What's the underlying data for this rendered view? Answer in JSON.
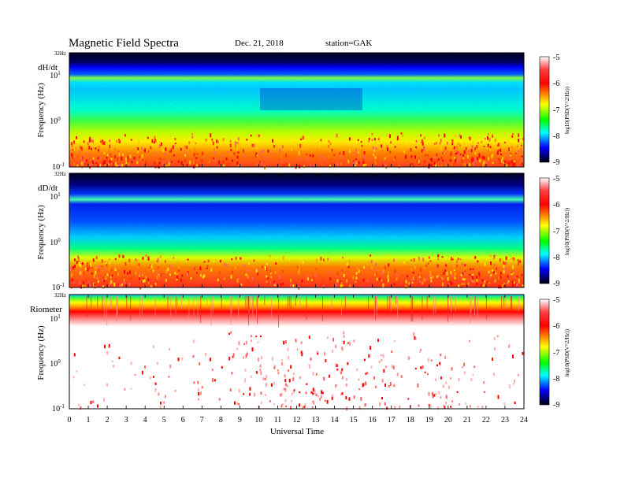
{
  "header": {
    "title": "Magnetic Field Spectra",
    "date": "Dec. 21, 2018",
    "station": "station=GAK"
  },
  "colors": {
    "colormap": [
      "#ffffff",
      "#ff0000",
      "#ffff00",
      "#00ff00",
      "#00ffff",
      "#0000ff",
      "#000000"
    ]
  },
  "chart_data": [
    {
      "type": "heatmap",
      "panel_label": "dH/dt",
      "ylabel": "Frequency (Hz)",
      "xlabel": "",
      "x_range": [
        0,
        24
      ],
      "y_scale": "log",
      "y_ticks": [
        {
          "label": "10",
          "sup": "-1"
        },
        {
          "label": "10",
          "sup": "0"
        },
        {
          "label": "10",
          "sup": "1"
        }
      ],
      "y_top_label": "32Hz",
      "colorbar_label": "log10(PSD(V^2/Hz))",
      "colorbar_ticks": [
        "-5",
        "-6",
        "-7",
        "-8",
        "-9"
      ],
      "colorbar_range": [
        -9,
        -5
      ],
      "description_levels": {
        "low_freq": -6,
        "mid_freq": -7.5,
        "band_7hz": -6.8,
        "high_freq": -9
      }
    },
    {
      "type": "heatmap",
      "panel_label": "dD/dt",
      "ylabel": "Frequency (Hz)",
      "xlabel": "",
      "x_range": [
        0,
        24
      ],
      "y_scale": "log",
      "y_ticks": [
        {
          "label": "10",
          "sup": "-1"
        },
        {
          "label": "10",
          "sup": "0"
        },
        {
          "label": "10",
          "sup": "1"
        }
      ],
      "y_top_label": "32Hz",
      "colorbar_label": "log10(PSD(V^2/Hz))",
      "colorbar_ticks": [
        "-5",
        "-6",
        "-7",
        "-8",
        "-9"
      ],
      "colorbar_range": [
        -9,
        -5
      ],
      "description_levels": {
        "low_freq": -6.2,
        "mid_freq": -8.2,
        "band_7hz": -7.2,
        "high_freq": -9
      }
    },
    {
      "type": "heatmap",
      "panel_label": "Riometer",
      "ylabel": "Frequency (Hz)",
      "xlabel": "Universal Time",
      "x_range": [
        0,
        24
      ],
      "x_ticks": [
        "0",
        "1",
        "2",
        "3",
        "4",
        "5",
        "6",
        "7",
        "8",
        "9",
        "10",
        "11",
        "12",
        "13",
        "14",
        "15",
        "16",
        "17",
        "18",
        "19",
        "20",
        "21",
        "22",
        "23",
        "24"
      ],
      "y_scale": "log",
      "y_ticks": [
        {
          "label": "10",
          "sup": "-1"
        },
        {
          "label": "10",
          "sup": "0"
        },
        {
          "label": "10",
          "sup": "1"
        }
      ],
      "y_top_label": "32Hz",
      "colorbar_label": "log10(PSD(V^2/Hz))",
      "colorbar_ticks": [
        "-5",
        "-6",
        "-7",
        "-8",
        "-9"
      ],
      "colorbar_range": [
        -9,
        -5
      ],
      "description_levels": {
        "low_freq": -4.5,
        "mid_freq": -4.5,
        "band_top": -6.5,
        "high_freq": -7
      }
    }
  ]
}
